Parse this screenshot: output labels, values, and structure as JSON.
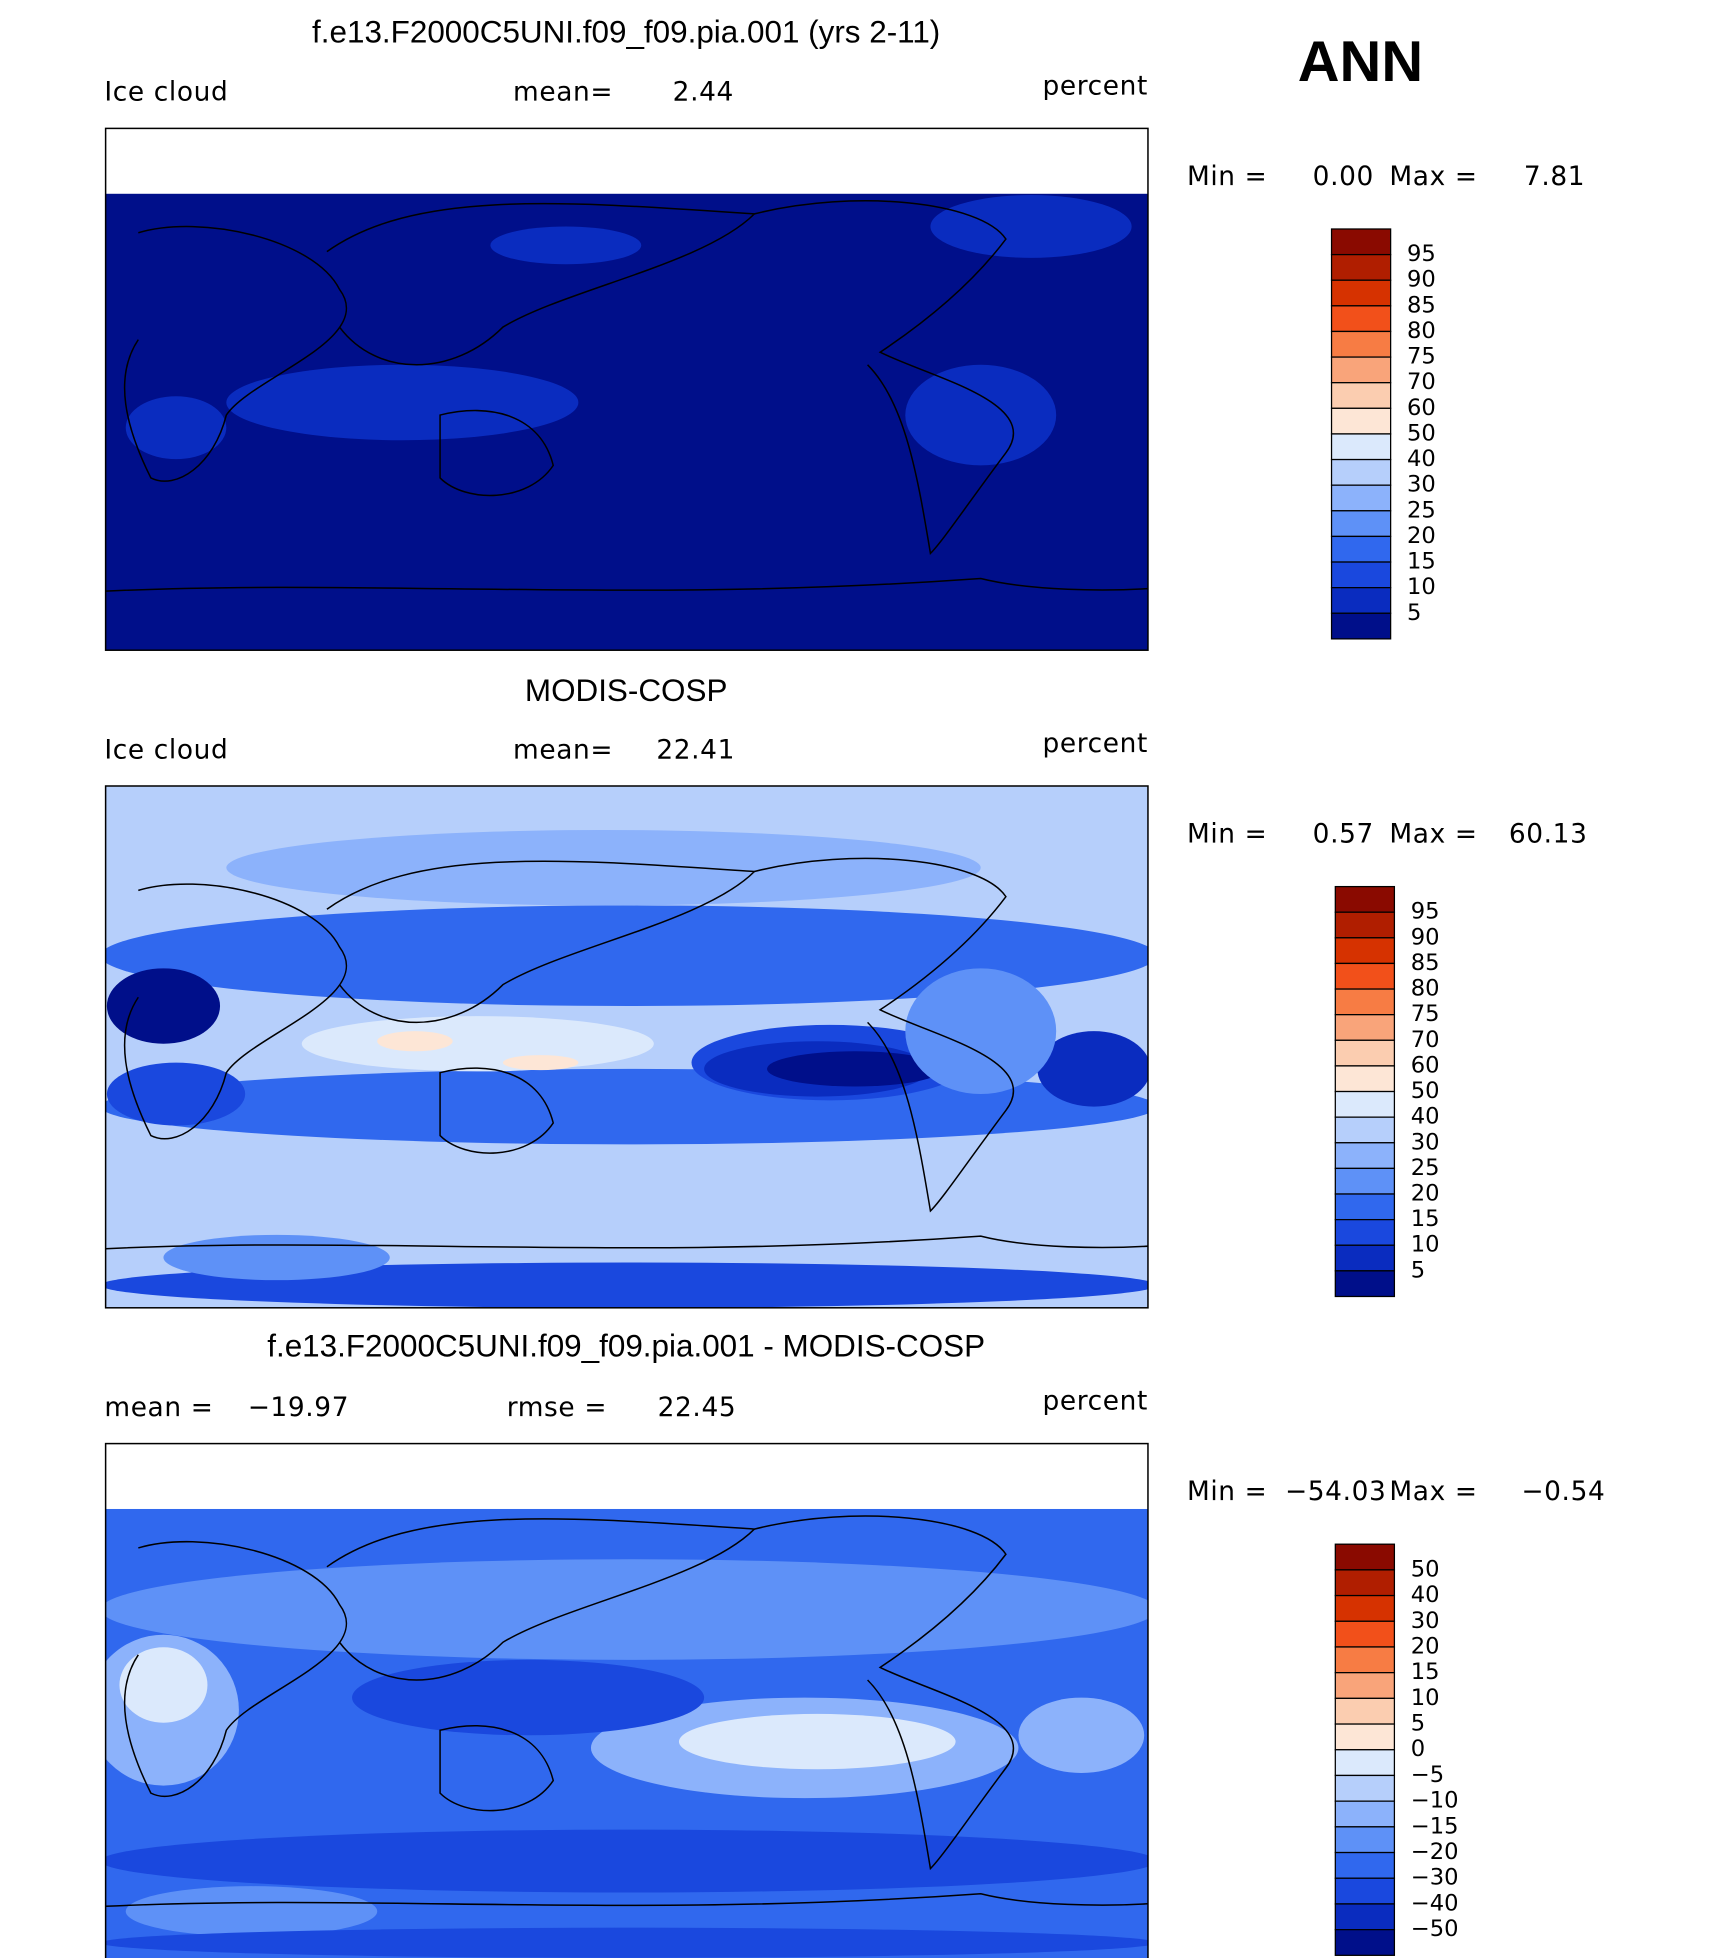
{
  "season": "ANN",
  "panels": [
    {
      "title": "f.e13.F2000C5UNI.f09_f09.pia.001 (yrs 2-11)",
      "variable": "Ice cloud",
      "stats": [
        {
          "label": "mean=",
          "value": "2.44"
        }
      ],
      "units": "percent",
      "min_label": "Min =",
      "min": "0.00",
      "max_label": "Max =",
      "max": "7.81",
      "colorbar_labels": [
        "95",
        "90",
        "85",
        "80",
        "75",
        "70",
        "60",
        "50",
        "40",
        "30",
        "25",
        "20",
        "15",
        "10",
        "5"
      ],
      "colorbar_colors": [
        "#8a0a00",
        "#b01e00",
        "#d63200",
        "#f2501a",
        "#f77c44",
        "#f9a47a",
        "#fbcdb0",
        "#fde6d6",
        "#dbe9fc",
        "#b6cffb",
        "#8cb2fb",
        "#5e91f7",
        "#3068ee",
        "#1a48de",
        "#0a2cbf",
        "#000f8a"
      ]
    },
    {
      "title": "MODIS-COSP",
      "variable": "Ice cloud",
      "stats": [
        {
          "label": "mean=",
          "value": "22.41"
        }
      ],
      "units": "percent",
      "min_label": "Min =",
      "min": "0.57",
      "max_label": "Max =",
      "max": "60.13",
      "colorbar_labels": [
        "95",
        "90",
        "85",
        "80",
        "75",
        "70",
        "60",
        "50",
        "40",
        "30",
        "25",
        "20",
        "15",
        "10",
        "5"
      ],
      "colorbar_colors": [
        "#8a0a00",
        "#b01e00",
        "#d63200",
        "#f2501a",
        "#f77c44",
        "#f9a47a",
        "#fbcdb0",
        "#fde6d6",
        "#dbe9fc",
        "#b6cffb",
        "#8cb2fb",
        "#5e91f7",
        "#3068ee",
        "#1a48de",
        "#0a2cbf",
        "#000f8a"
      ]
    },
    {
      "title": "f.e13.F2000C5UNI.f09_f09.pia.001 - MODIS-COSP",
      "stats": [
        {
          "label": "mean =",
          "value": "−19.97"
        },
        {
          "label": "rmse =",
          "value": "22.45"
        }
      ],
      "units": "percent",
      "min_label": "Min =",
      "min": "−54.03",
      "max_label": "Max =",
      "max": "−0.54",
      "colorbar_labels": [
        "50",
        "40",
        "30",
        "20",
        "15",
        "10",
        "5",
        "0",
        "−5",
        "−10",
        "−15",
        "−20",
        "−30",
        "−40",
        "−50"
      ],
      "colorbar_colors": [
        "#8a0a00",
        "#b01e00",
        "#d63200",
        "#f2501a",
        "#f77c44",
        "#f9a47a",
        "#fbcdb0",
        "#fde6d6",
        "#dbe9fc",
        "#b6cffb",
        "#8cb2fb",
        "#5e91f7",
        "#3068ee",
        "#1a48de",
        "#0a2cbf",
        "#000f8a"
      ]
    }
  ]
}
